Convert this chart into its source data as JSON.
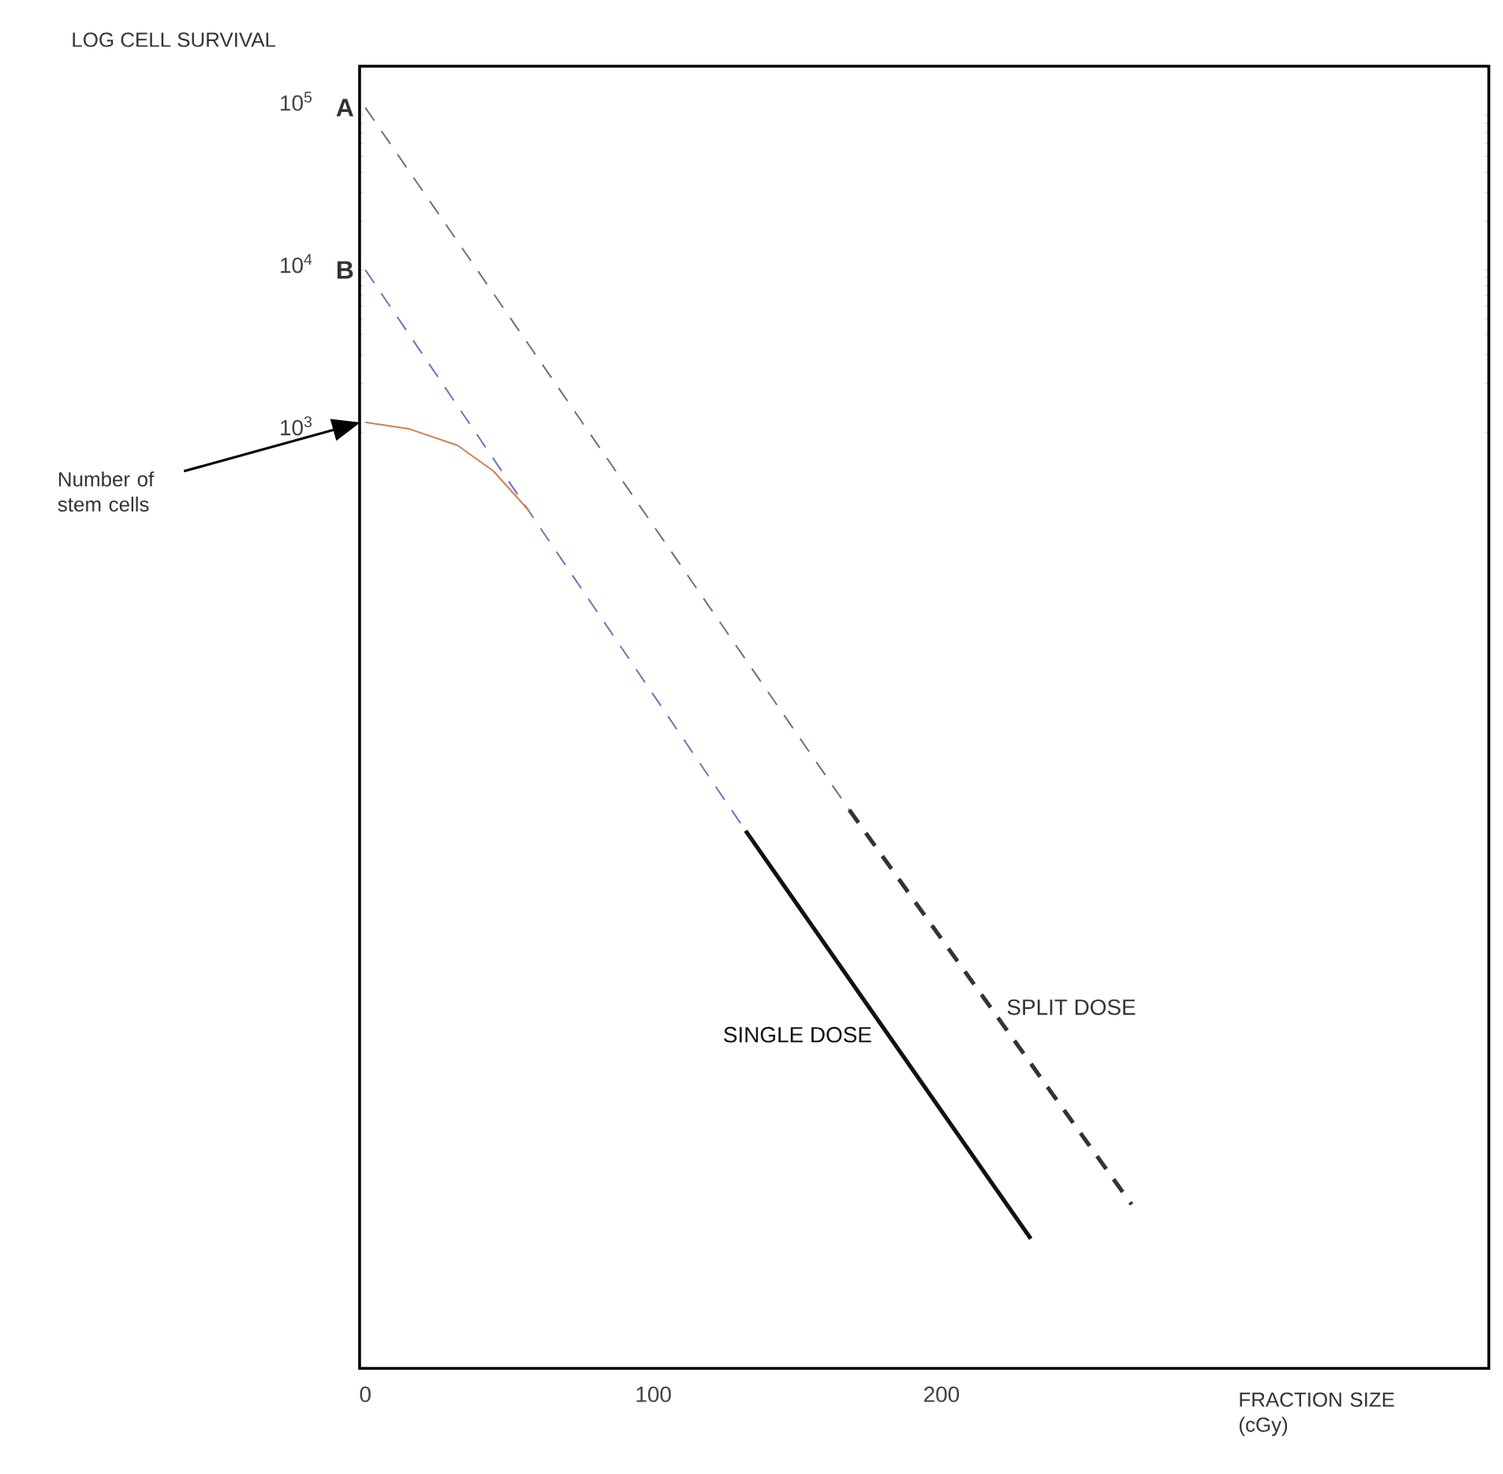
{
  "chart_data": {
    "type": "line",
    "xlabel": "FRACTION SIZE (cGy)",
    "ylabel": "LOG CELL SURVIVAL",
    "log": "y",
    "xlim": [
      -2,
      390
    ],
    "ylim": [
      0.0017,
      180000
    ],
    "xticks": [
      0,
      100,
      200
    ],
    "yticks": [
      {
        "value": 1000,
        "label": "10$^{3}$"
      },
      {
        "value": 10000,
        "label": "10$^{4}$"
      },
      {
        "value": 100000,
        "label": "10$^{5}$"
      }
    ],
    "series": [
      {
        "color": "#6b7560",
        "line_style": "dashed",
        "x": [
          0,
          168
        ],
        "values": [
          100000,
          4.7
        ]
      },
      {
        "name": "SPLIT DOSE",
        "color": "#333333",
        "line_style": "dashed",
        "x": [
          168,
          266
        ],
        "values": [
          4.7,
          0.0174
        ]
      },
      {
        "color": "#7070c0",
        "line_style": "dashed",
        "x": [
          0,
          132
        ],
        "values": [
          10000,
          3.5
        ]
      },
      {
        "name": "SINGLE DOSE",
        "color": "#111111",
        "line_style": "solid",
        "x": [
          132,
          231
        ],
        "values": [
          3.5,
          0.0107
        ]
      },
      {
        "color": "#d08050",
        "line_style": "solid",
        "x": [
          0,
          15,
          32,
          44.5,
          57
        ],
        "values": [
          1150,
          1050,
          830,
          575,
          325
        ]
      }
    ],
    "annotations": [
      {
        "text": "A",
        "x": 0,
        "y": 100000
      },
      {
        "text": "B",
        "x": 0,
        "y": 10000
      },
      "Number of stem cells"
    ]
  }
}
